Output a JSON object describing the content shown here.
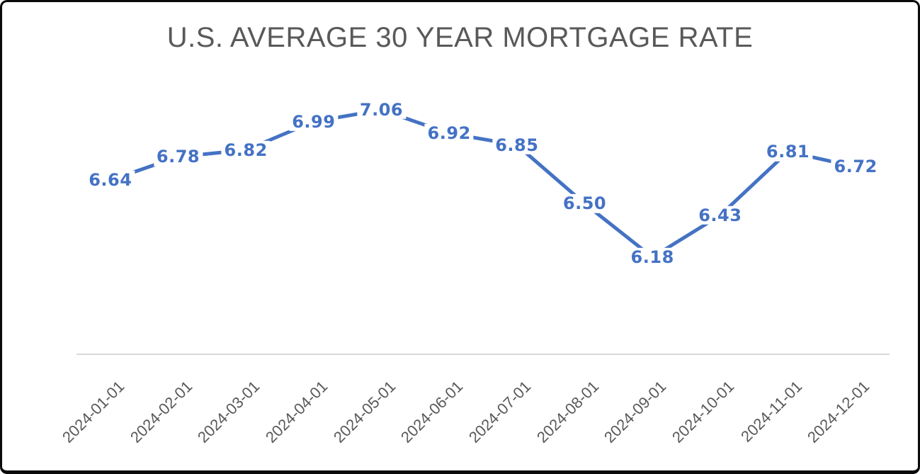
{
  "chart_data": {
    "type": "line",
    "title": "U.S. AVERAGE 30 YEAR MORTGAGE RATE",
    "x": [
      "2024-01-01",
      "2024-02-01",
      "2024-03-01",
      "2024-04-01",
      "2024-05-01",
      "2024-06-01",
      "2024-07-01",
      "2024-08-01",
      "2024-09-01",
      "2024-10-01",
      "2024-11-01",
      "2024-12-01"
    ],
    "values": [
      6.64,
      6.78,
      6.82,
      6.99,
      7.06,
      6.92,
      6.85,
      6.5,
      6.18,
      6.43,
      6.81,
      6.72
    ],
    "xlabel": "",
    "ylabel": "",
    "ylim": [
      5.6,
      7.2
    ],
    "grid": false,
    "legend": "none",
    "y_axis_visible": false,
    "x_tick_rotation_deg": -45,
    "data_labels_visible": true,
    "data_label_decimals": 2,
    "colors": {
      "line": "#4472c4",
      "data_label": "#4472c4",
      "title": "#595959",
      "tick_label": "#595959",
      "x_axis_line": "#d9d9d9",
      "background": "#ffffff",
      "frame_border": "#0a0a0a"
    }
  }
}
